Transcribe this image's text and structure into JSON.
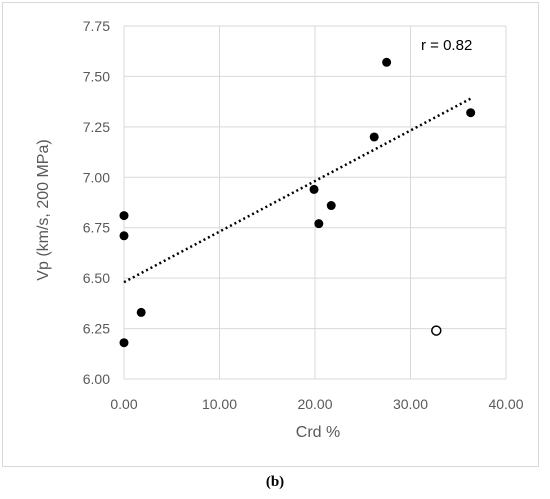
{
  "chart_data": {
    "type": "scatter",
    "xlabel": "Crd %",
    "ylabel": "Vp (km/s, 200 MPa)",
    "xlim": [
      0,
      40
    ],
    "ylim": [
      6.0,
      7.75
    ],
    "x_ticks": [
      "0.00",
      "10.00",
      "20.00",
      "30.00",
      "40.00"
    ],
    "y_ticks": [
      "6.00",
      "6.25",
      "6.50",
      "6.75",
      "7.00",
      "7.25",
      "7.50",
      "7.75"
    ],
    "grid": true,
    "series": [
      {
        "marker": "filled",
        "points": [
          {
            "x": 0.0,
            "y": 6.81
          },
          {
            "x": 0.0,
            "y": 6.71
          },
          {
            "x": 0.0,
            "y": 6.18
          },
          {
            "x": 1.8,
            "y": 6.33
          },
          {
            "x": 19.9,
            "y": 6.94
          },
          {
            "x": 20.4,
            "y": 6.77
          },
          {
            "x": 21.7,
            "y": 6.86
          },
          {
            "x": 26.2,
            "y": 7.2
          },
          {
            "x": 27.5,
            "y": 7.57
          },
          {
            "x": 36.3,
            "y": 7.32
          }
        ]
      },
      {
        "marker": "open",
        "points": [
          {
            "x": 32.7,
            "y": 6.24
          }
        ]
      }
    ],
    "trendline": {
      "style": "dotted",
      "x": [
        0,
        36.3
      ],
      "y": [
        6.48,
        7.39
      ]
    },
    "annotation": "r = 0.82"
  },
  "caption": "(b)",
  "colors": {
    "grid": "#d9d9d9",
    "axis_text": "#595959",
    "marker": "#000000",
    "frame": "#d9d9d9"
  }
}
